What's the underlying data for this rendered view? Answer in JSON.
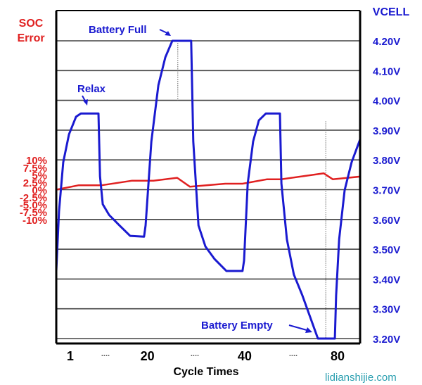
{
  "chart_data": {
    "type": "line",
    "title": "",
    "xlabel": "Cycle Times",
    "ylabel_left": [
      "SOC",
      "Error"
    ],
    "ylabel_right": "VCELL",
    "x_range": [
      0,
      100
    ],
    "x_ticks": [
      {
        "x": 4.6,
        "label": "1"
      },
      {
        "x": 16.2,
        "label": "...."
      },
      {
        "x": 30,
        "label": "20"
      },
      {
        "x": 45.6,
        "label": "...."
      },
      {
        "x": 62,
        "label": "40"
      },
      {
        "x": 78,
        "label": "...."
      },
      {
        "x": 92.6,
        "label": "80"
      }
    ],
    "y_left_ticks": [
      {
        "v": 10,
        "label": "10%"
      },
      {
        "v": 7.5,
        "label": "7.5%"
      },
      {
        "v": 5,
        "label": "5%"
      },
      {
        "v": 2.5,
        "label": "2.5%"
      },
      {
        "v": 0,
        "label": "0%"
      },
      {
        "v": -2.5,
        "label": "-2.5%"
      },
      {
        "v": -5,
        "label": "-5.0%"
      },
      {
        "v": -7.5,
        "label": "-7.5%"
      },
      {
        "v": -10,
        "label": "-10%"
      }
    ],
    "y_right_ticks": [
      {
        "v": 4.2,
        "label": "4.20V"
      },
      {
        "v": 4.1,
        "label": "4.10V"
      },
      {
        "v": 4.0,
        "label": "4.00V"
      },
      {
        "v": 3.9,
        "label": "3.90V"
      },
      {
        "v": 3.8,
        "label": "3.80V"
      },
      {
        "v": 3.7,
        "label": "3.70V"
      },
      {
        "v": 3.6,
        "label": "3.60V"
      },
      {
        "v": 3.5,
        "label": "3.50V"
      },
      {
        "v": 3.4,
        "label": "3.40V"
      },
      {
        "v": 3.3,
        "label": "3.30V"
      },
      {
        "v": 3.2,
        "label": "3.20V"
      }
    ],
    "y_right_range": [
      3.2,
      4.2
    ],
    "grid": true,
    "series": [
      {
        "name": "VCELL",
        "axis": "right",
        "color": "#1a1ad0",
        "points": [
          [
            0,
            3.427
          ],
          [
            0.9,
            3.627
          ],
          [
            2.3,
            3.792
          ],
          [
            4.2,
            3.886
          ],
          [
            6.5,
            3.945
          ],
          [
            8.1,
            3.956
          ],
          [
            13.9,
            3.956
          ],
          [
            14.4,
            3.745
          ],
          [
            15.3,
            3.651
          ],
          [
            17.4,
            3.615
          ],
          [
            20.8,
            3.58
          ],
          [
            24.3,
            3.545
          ],
          [
            28.9,
            3.542
          ],
          [
            29.4,
            3.58
          ],
          [
            31.3,
            3.862
          ],
          [
            33.6,
            4.051
          ],
          [
            35.9,
            4.145
          ],
          [
            38.2,
            4.2
          ],
          [
            44.4,
            4.2
          ],
          [
            45.1,
            3.862
          ],
          [
            46.8,
            3.58
          ],
          [
            49.1,
            3.509
          ],
          [
            52.1,
            3.467
          ],
          [
            56.0,
            3.427
          ],
          [
            61.3,
            3.427
          ],
          [
            61.8,
            3.462
          ],
          [
            63.0,
            3.721
          ],
          [
            64.8,
            3.862
          ],
          [
            66.7,
            3.933
          ],
          [
            69.0,
            3.956
          ],
          [
            73.6,
            3.956
          ],
          [
            74.1,
            3.721
          ],
          [
            75.9,
            3.533
          ],
          [
            78.2,
            3.415
          ],
          [
            81.0,
            3.345
          ],
          [
            86.1,
            3.2
          ],
          [
            91.7,
            3.2
          ],
          [
            92.1,
            3.345
          ],
          [
            93.1,
            3.533
          ],
          [
            94.9,
            3.698
          ],
          [
            97.2,
            3.792
          ],
          [
            100,
            3.869
          ]
        ]
      },
      {
        "name": "SOC Error",
        "axis": "left",
        "color": "#e02020",
        "points": [
          [
            0,
            0
          ],
          [
            7.4,
            1.5
          ],
          [
            15,
            1.5
          ],
          [
            24.8,
            3.0
          ],
          [
            32,
            3.0
          ],
          [
            39.8,
            4.0
          ],
          [
            44,
            1.0
          ],
          [
            55.6,
            2.0
          ],
          [
            61.3,
            2.0
          ],
          [
            69.4,
            3.5
          ],
          [
            74,
            3.5
          ],
          [
            88,
            5.5
          ],
          [
            91,
            3.5
          ],
          [
            100,
            4.4
          ]
        ]
      }
    ],
    "markers": [
      {
        "x": 40,
        "v_from": 4.0,
        "v_to": 4.2
      },
      {
        "x": 88.7,
        "v_from": 3.2,
        "v_to": 3.93
      }
    ],
    "annotations": [
      {
        "text": "Battery Full"
      },
      {
        "text": "Relax"
      },
      {
        "text": "Battery Empty"
      }
    ]
  },
  "watermark": "lidianshijie.com",
  "colors": {
    "left_axis": "#e02020",
    "right_axis": "#1a1ad0",
    "watermark": "#2a9fb0"
  }
}
